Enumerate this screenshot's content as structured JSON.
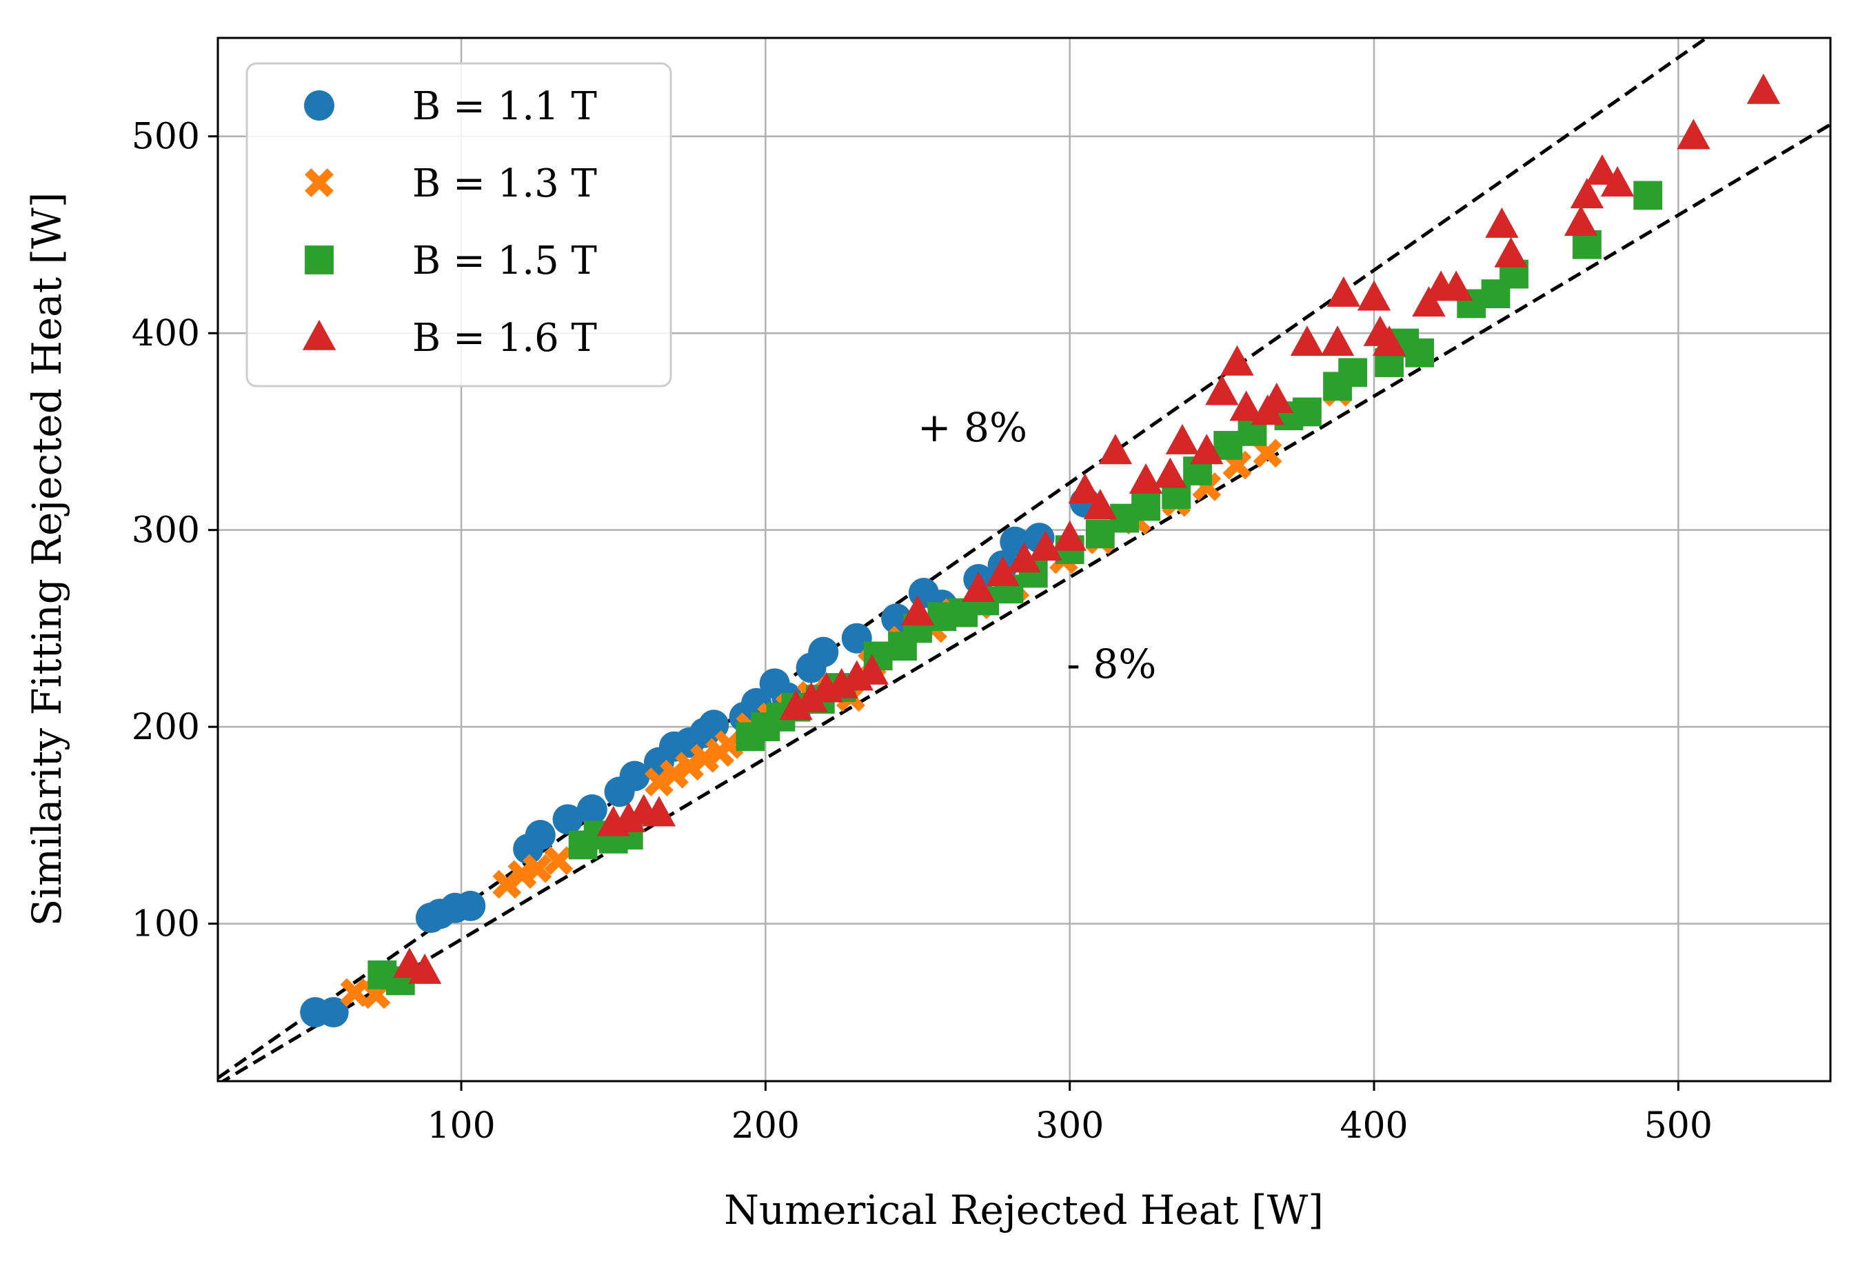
{
  "chart_data": {
    "type": "scatter",
    "title": "",
    "xlabel": "Numerical Rejected Heat [W]",
    "ylabel": "Similarity Fitting Rejected Heat [W]",
    "xlim": [
      20,
      550
    ],
    "ylim": [
      20,
      550
    ],
    "xticks": [
      100,
      200,
      300,
      400,
      500
    ],
    "yticks": [
      100,
      200,
      300,
      400,
      500
    ],
    "grid": true,
    "legend_position": "upper-left",
    "reference_lines": [
      {
        "label": "+ 8%",
        "slope": 1.08,
        "style": "dashed",
        "color": "#000000",
        "label_at": [
          250,
          352
        ]
      },
      {
        "label": "- 8%",
        "slope": 0.92,
        "style": "dashed",
        "color": "#000000",
        "label_at": [
          299,
          232
        ]
      }
    ],
    "series": [
      {
        "name": "B = 1.1 T",
        "marker": "circle",
        "color": "#1f77b4",
        "points": [
          [
            52,
            55
          ],
          [
            58,
            55
          ],
          [
            90,
            103
          ],
          [
            93,
            105
          ],
          [
            98,
            108
          ],
          [
            103,
            109
          ],
          [
            122,
            138
          ],
          [
            126,
            145
          ],
          [
            135,
            153
          ],
          [
            143,
            158
          ],
          [
            152,
            167
          ],
          [
            157,
            175
          ],
          [
            165,
            182
          ],
          [
            170,
            190
          ],
          [
            175,
            192
          ],
          [
            180,
            197
          ],
          [
            183,
            201
          ],
          [
            193,
            205
          ],
          [
            197,
            212
          ],
          [
            203,
            222
          ],
          [
            207,
            215
          ],
          [
            215,
            230
          ],
          [
            219,
            238
          ],
          [
            230,
            245
          ],
          [
            243,
            255
          ],
          [
            252,
            268
          ],
          [
            258,
            262
          ],
          [
            270,
            275
          ],
          [
            278,
            282
          ],
          [
            282,
            294
          ],
          [
            290,
            296
          ],
          [
            305,
            314
          ]
        ]
      },
      {
        "name": "B = 1.3 T",
        "marker": "x",
        "color": "#ff7f0e",
        "points": [
          [
            65,
            65
          ],
          [
            72,
            64
          ],
          [
            115,
            120
          ],
          [
            120,
            125
          ],
          [
            125,
            128
          ],
          [
            132,
            132
          ],
          [
            165,
            172
          ],
          [
            170,
            176
          ],
          [
            175,
            180
          ],
          [
            180,
            184
          ],
          [
            185,
            187
          ],
          [
            188,
            191
          ],
          [
            195,
            200
          ],
          [
            202,
            205
          ],
          [
            208,
            210
          ],
          [
            215,
            216
          ],
          [
            222,
            219
          ],
          [
            228,
            215
          ],
          [
            235,
            232
          ],
          [
            245,
            244
          ],
          [
            255,
            250
          ],
          [
            262,
            258
          ],
          [
            270,
            262
          ],
          [
            282,
            271
          ],
          [
            298,
            285
          ],
          [
            310,
            295
          ],
          [
            322,
            305
          ],
          [
            335,
            314
          ],
          [
            345,
            322
          ],
          [
            355,
            333
          ],
          [
            365,
            339
          ],
          [
            388,
            370
          ]
        ]
      },
      {
        "name": "B = 1.5 T",
        "marker": "square",
        "color": "#2ca02c",
        "points": [
          [
            74,
            74
          ],
          [
            80,
            71
          ],
          [
            140,
            140
          ],
          [
            145,
            145
          ],
          [
            150,
            143
          ],
          [
            155,
            145
          ],
          [
            195,
            195
          ],
          [
            200,
            200
          ],
          [
            205,
            205
          ],
          [
            210,
            210
          ],
          [
            218,
            214
          ],
          [
            225,
            220
          ],
          [
            237,
            236
          ],
          [
            245,
            241
          ],
          [
            250,
            250
          ],
          [
            258,
            256
          ],
          [
            265,
            258
          ],
          [
            272,
            264
          ],
          [
            280,
            270
          ],
          [
            288,
            278
          ],
          [
            300,
            290
          ],
          [
            310,
            298
          ],
          [
            318,
            306
          ],
          [
            325,
            312
          ],
          [
            335,
            318
          ],
          [
            342,
            330
          ],
          [
            352,
            343
          ],
          [
            360,
            350
          ],
          [
            372,
            358
          ],
          [
            378,
            360
          ],
          [
            388,
            373
          ],
          [
            393,
            380
          ],
          [
            405,
            385
          ],
          [
            410,
            395
          ],
          [
            415,
            390
          ],
          [
            432,
            415
          ],
          [
            440,
            420
          ],
          [
            446,
            430
          ],
          [
            470,
            445
          ],
          [
            490,
            470
          ]
        ]
      },
      {
        "name": "B = 1.6 T",
        "marker": "triangle",
        "color": "#d62728",
        "points": [
          [
            83,
            79
          ],
          [
            88,
            76
          ],
          [
            150,
            151
          ],
          [
            155,
            153
          ],
          [
            160,
            157
          ],
          [
            165,
            156
          ],
          [
            210,
            210
          ],
          [
            215,
            214
          ],
          [
            220,
            219
          ],
          [
            225,
            221
          ],
          [
            230,
            225
          ],
          [
            235,
            228
          ],
          [
            250,
            258
          ],
          [
            270,
            270
          ],
          [
            278,
            278
          ],
          [
            285,
            285
          ],
          [
            292,
            291
          ],
          [
            300,
            296
          ],
          [
            305,
            320
          ],
          [
            310,
            312
          ],
          [
            315,
            340
          ],
          [
            325,
            325
          ],
          [
            333,
            328
          ],
          [
            337,
            345
          ],
          [
            345,
            340
          ],
          [
            350,
            370
          ],
          [
            355,
            385
          ],
          [
            358,
            362
          ],
          [
            365,
            360
          ],
          [
            368,
            366
          ],
          [
            378,
            395
          ],
          [
            388,
            395
          ],
          [
            390,
            420
          ],
          [
            400,
            418
          ],
          [
            402,
            400
          ],
          [
            405,
            395
          ],
          [
            418,
            415
          ],
          [
            422,
            423
          ],
          [
            427,
            423
          ],
          [
            442,
            455
          ],
          [
            445,
            440
          ],
          [
            468,
            456
          ],
          [
            470,
            470
          ],
          [
            475,
            482
          ],
          [
            480,
            476
          ],
          [
            505,
            500
          ],
          [
            528,
            523
          ]
        ]
      }
    ]
  }
}
